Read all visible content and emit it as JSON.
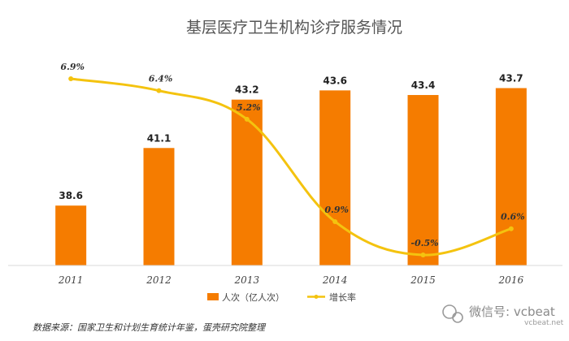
{
  "chart_data": {
    "type": "bar",
    "title": "基层医疗卫生机构诊疗服务情况",
    "categories": [
      "2011",
      "2012",
      "2013",
      "2014",
      "2015",
      "2016"
    ],
    "series": [
      {
        "name": "人次（亿人次）",
        "type": "bar",
        "values": [
          38.6,
          41.1,
          43.2,
          43.6,
          43.4,
          43.7
        ],
        "labels": [
          "38.6",
          "41.1",
          "43.2",
          "43.6",
          "43.4",
          "43.7"
        ],
        "color": "#f57c00"
      },
      {
        "name": "增长率",
        "type": "line",
        "values": [
          6.9,
          6.4,
          5.2,
          0.9,
          -0.5,
          0.6
        ],
        "labels": [
          "6.9%",
          "6.4%",
          "5.2%",
          "0.9%",
          "-0.5%",
          "0.6%"
        ],
        "color": "#f4c30f"
      }
    ],
    "legend_position": "bottom",
    "grid": false
  },
  "footer": {
    "source": "数据来源：国家卫生和计划生育统计年鉴，蛋壳研究院整理"
  },
  "watermark": {
    "text": "微信号: vcbeat",
    "sub": "vcbeat.net"
  }
}
